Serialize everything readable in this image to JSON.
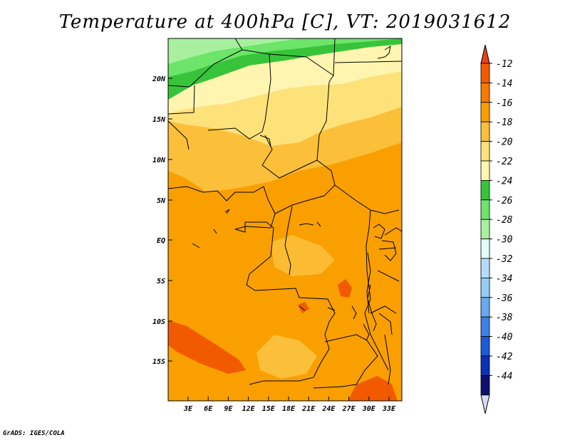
{
  "title": "Temperature at 400hPa [C], VT: 2019031612",
  "credit": "GrADS: IGES/COLA",
  "map": {
    "lat_ticks": [
      "20N",
      "15N",
      "10N",
      "5N",
      "EQ",
      "5S",
      "10S",
      "15S"
    ],
    "lon_ticks": [
      "3E",
      "6E",
      "9E",
      "12E",
      "15E",
      "18E",
      "21E",
      "24E",
      "27E",
      "30E",
      "33E"
    ]
  },
  "colorbar": {
    "labels": [
      "-12",
      "-14",
      "-16",
      "-18",
      "-20",
      "-22",
      "-24",
      "-26",
      "-28",
      "-30",
      "-32",
      "-34",
      "-36",
      "-38",
      "-40",
      "-42",
      "-44"
    ],
    "colors": [
      "#f25a00",
      "#f77a00",
      "#f99f00",
      "#fbbf3a",
      "#fde27a",
      "#fff5b0",
      "#38c43a",
      "#6de46a",
      "#a8f0a0",
      "#e2fbf9",
      "#b4dcf8",
      "#95cbf5",
      "#6aa8ef",
      "#3e80e6",
      "#1c5ad9",
      "#0c30b6",
      "#0c1070"
    ],
    "top_arrow_color": "#e8401c",
    "bottom_arrow_color": "#d6dcf6"
  }
}
